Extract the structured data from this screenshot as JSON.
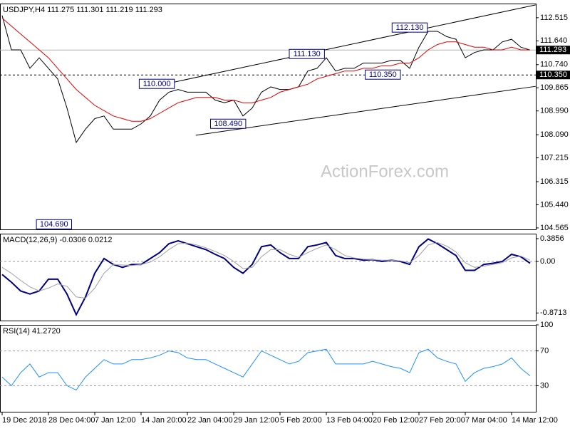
{
  "chart_data": [
    {
      "type": "line",
      "title": "USDJPY,H4  111.275 111.301 111.219 111.293",
      "watermark": "ActionForex.com",
      "categories": [
        "19 Dec 2018",
        null,
        null,
        null,
        null,
        "28 Dec 04:00",
        null,
        null,
        null,
        null,
        "7 Jan 12:00",
        null,
        null,
        null,
        null,
        "14 Jan 20:00",
        null,
        null,
        null,
        null,
        "22 Jan 04:00",
        null,
        null,
        null,
        null,
        "29 Jan 12:00",
        null,
        null,
        null,
        null,
        "5 Feb 20:00",
        null,
        null,
        null,
        null,
        "13 Feb 04:00",
        null,
        null,
        null,
        null,
        "20 Feb 12:00",
        null,
        null,
        null,
        null,
        "27 Feb 20:00",
        null,
        null,
        null,
        null,
        "7 Mar 04:00",
        null,
        null,
        null,
        null,
        "14 Mar 12:00",
        null,
        null
      ],
      "series": [
        {
          "color": "#000000",
          "values": [
            112.6,
            111.3,
            111.3,
            110.6,
            111.0,
            110.6,
            110.2,
            109.1,
            107.8,
            108.3,
            108.7,
            108.8,
            108.3,
            108.3,
            108.3,
            108.5,
            108.8,
            109.4,
            109.7,
            109.8,
            109.7,
            109.7,
            109.7,
            109.4,
            109.3,
            109.4,
            108.8,
            109.1,
            109.7,
            109.9,
            109.8,
            109.8,
            109.9,
            110.5,
            110.6,
            111.0,
            110.5,
            110.6,
            110.6,
            110.8,
            110.8,
            110.8,
            110.9,
            110.9,
            110.6,
            111.4,
            112.0,
            112.0,
            111.8,
            111.7,
            111.0,
            111.2,
            111.3,
            111.3,
            111.6,
            111.7,
            111.4,
            111.293
          ]
        },
        {
          "color": "#e00000",
          "values": [
            112.5,
            112.2,
            111.9,
            111.6,
            111.3,
            111.0,
            110.6,
            110.2,
            109.8,
            109.5,
            109.2,
            109.0,
            108.8,
            108.7,
            108.6,
            108.6,
            108.7,
            108.9,
            109.1,
            109.3,
            109.4,
            109.5,
            109.5,
            109.5,
            109.4,
            109.4,
            109.3,
            109.3,
            109.4,
            109.5,
            109.7,
            109.8,
            109.9,
            110.0,
            110.2,
            110.3,
            110.4,
            110.5,
            110.5,
            110.6,
            110.6,
            110.7,
            110.7,
            110.8,
            110.8,
            111.0,
            111.3,
            111.5,
            111.6,
            111.6,
            111.5,
            111.4,
            111.4,
            111.3,
            111.3,
            111.4,
            111.3,
            111.3
          ]
        }
      ],
      "ylim": [
        104.51,
        113.05
      ],
      "yticks": [
        112.515,
        {
          "value": 111.64,
          "label": "111.640"
        },
        {
          "value": 110.74,
          "label": "110.740"
        },
        109.865,
        {
          "value": 108.99,
          "label": "108.990"
        },
        {
          "value": 108.09,
          "label": "108.090"
        },
        107.215,
        106.315,
        {
          "value": 105.44,
          "label": "105.440"
        },
        104.565
      ],
      "annotations": [
        {
          "x": 7.5,
          "value": 104.69,
          "label": "104.690"
        },
        {
          "x": 18.6,
          "value": 110.0,
          "label": "110.000"
        },
        {
          "x": 26.3,
          "value": 108.49,
          "label": "108.490"
        },
        {
          "x": 34.8,
          "value": 111.13,
          "label": "111.130"
        },
        {
          "x": 43,
          "value": 110.35,
          "label": "110.350"
        },
        {
          "x": 45.9,
          "value": 112.13,
          "label": "112.130"
        }
      ],
      "hlines": [
        {
          "value": 110.35,
          "label": "110.350"
        }
      ],
      "last_price": 111.293,
      "trendlines": [
        {
          "x": [
            17.5,
            57.6
          ],
          "values": [
            110.0,
            113.0
          ]
        },
        {
          "x": [
            20.9,
            57.6
          ],
          "values": [
            108.07,
            109.92
          ]
        }
      ]
    },
    {
      "type": "line",
      "title": "MACD(12,26,9) -0.0306 0.0212",
      "series": [
        {
          "color": "#000080",
          "values": [
            -0.22,
            -0.35,
            -0.5,
            -0.55,
            -0.5,
            -0.3,
            -0.3,
            -0.55,
            -0.9,
            -0.6,
            -0.2,
            0.05,
            -0.05,
            -0.1,
            -0.05,
            -0.05,
            0.05,
            0.15,
            0.3,
            0.35,
            0.3,
            0.25,
            0.2,
            0.12,
            0.05,
            -0.1,
            -0.2,
            -0.05,
            0.25,
            0.28,
            0.15,
            0.05,
            0.05,
            0.25,
            0.28,
            0.32,
            0.1,
            0.05,
            0.05,
            0.02,
            0.03,
            0,
            0.02,
            0,
            -0.05,
            0.25,
            0.38,
            0.3,
            0.2,
            0.1,
            -0.15,
            -0.15,
            -0.05,
            -0.03,
            0,
            0.12,
            0.08,
            -0.0306
          ]
        },
        {
          "color": "#a0a0a0",
          "values": [
            -0.1,
            -0.2,
            -0.32,
            -0.43,
            -0.5,
            -0.45,
            -0.38,
            -0.42,
            -0.6,
            -0.62,
            -0.45,
            -0.2,
            -0.05,
            -0.06,
            -0.07,
            -0.05,
            -0.01,
            0.08,
            0.2,
            0.3,
            0.31,
            0.28,
            0.23,
            0.17,
            0.1,
            0.0,
            -0.12,
            -0.1,
            0.08,
            0.2,
            0.2,
            0.12,
            0.07,
            0.15,
            0.22,
            0.28,
            0.2,
            0.1,
            0.06,
            0.04,
            0.03,
            0.02,
            0.02,
            0.01,
            -0.02,
            0.1,
            0.28,
            0.32,
            0.26,
            0.16,
            -0.02,
            -0.1,
            -0.08,
            -0.05,
            -0.02,
            0.06,
            0.09,
            0.0212
          ]
        }
      ],
      "ylim": [
        -1.0,
        0.47
      ],
      "yticks": [
        0.3856,
        {
          "value": 0,
          "label": "0.00"
        },
        -0.8713
      ],
      "zero_line": true
    },
    {
      "type": "line",
      "title": "RSI(14) 41.2720",
      "series": [
        {
          "color": "#1e90ff",
          "values": [
            40,
            30,
            45,
            55,
            40,
            45,
            45,
            30,
            25,
            40,
            50,
            60,
            55,
            55,
            60,
            60,
            62,
            65,
            70,
            68,
            62,
            60,
            60,
            55,
            50,
            45,
            40,
            55,
            70,
            65,
            60,
            55,
            58,
            68,
            70,
            72,
            55,
            55,
            55,
            55,
            58,
            55,
            52,
            50,
            45,
            68,
            72,
            62,
            58,
            55,
            35,
            45,
            50,
            52,
            55,
            62,
            50,
            41.272
          ]
        }
      ],
      "ylim": [
        0,
        100
      ],
      "yticks": [
        100,
        70,
        30
      ],
      "grid": true
    }
  ]
}
